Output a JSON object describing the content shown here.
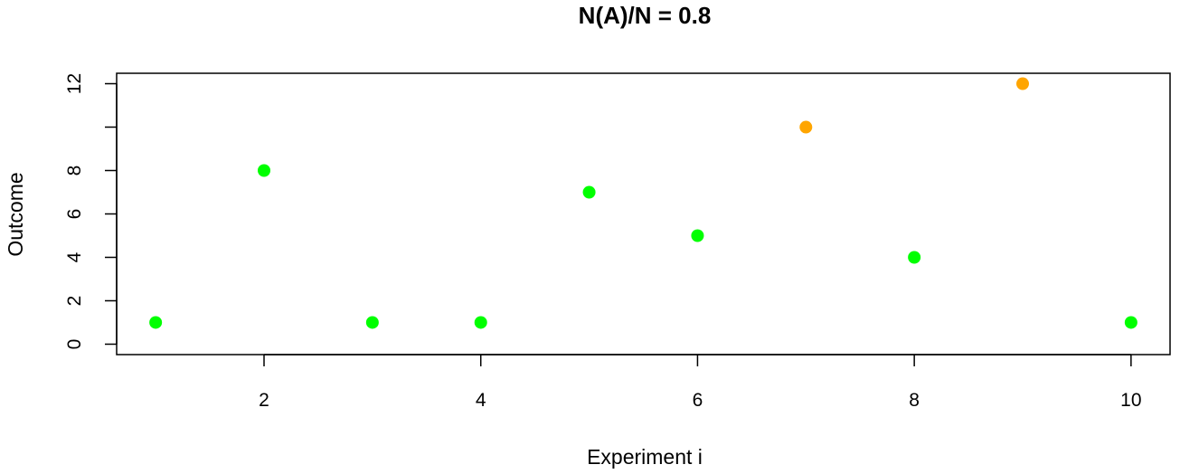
{
  "chart_data": {
    "type": "scatter",
    "title": "N(A)/N =  0.8",
    "xlabel": "Experiment i",
    "ylabel": "Outcome",
    "xlim": [
      0.64,
      10.36
    ],
    "ylim": [
      -0.48,
      12.48
    ],
    "x_ticks": [
      2,
      4,
      6,
      8,
      10
    ],
    "y_ticks": [
      0,
      2,
      4,
      6,
      8,
      10,
      12
    ],
    "y_tick_labels": [
      "0",
      "2",
      "4",
      "6",
      "8",
      "",
      "12"
    ],
    "grid": false,
    "points": [
      {
        "x": 1,
        "y": 1,
        "color": "#00ff00"
      },
      {
        "x": 2,
        "y": 8,
        "color": "#00ff00"
      },
      {
        "x": 3,
        "y": 1,
        "color": "#00ff00"
      },
      {
        "x": 4,
        "y": 1,
        "color": "#00ff00"
      },
      {
        "x": 5,
        "y": 7,
        "color": "#00ff00"
      },
      {
        "x": 6,
        "y": 5,
        "color": "#00ff00"
      },
      {
        "x": 7,
        "y": 10,
        "color": "#ffa500"
      },
      {
        "x": 8,
        "y": 4,
        "color": "#00ff00"
      },
      {
        "x": 9,
        "y": 12,
        "color": "#ffa500"
      },
      {
        "x": 10,
        "y": 1,
        "color": "#00ff00"
      }
    ]
  }
}
